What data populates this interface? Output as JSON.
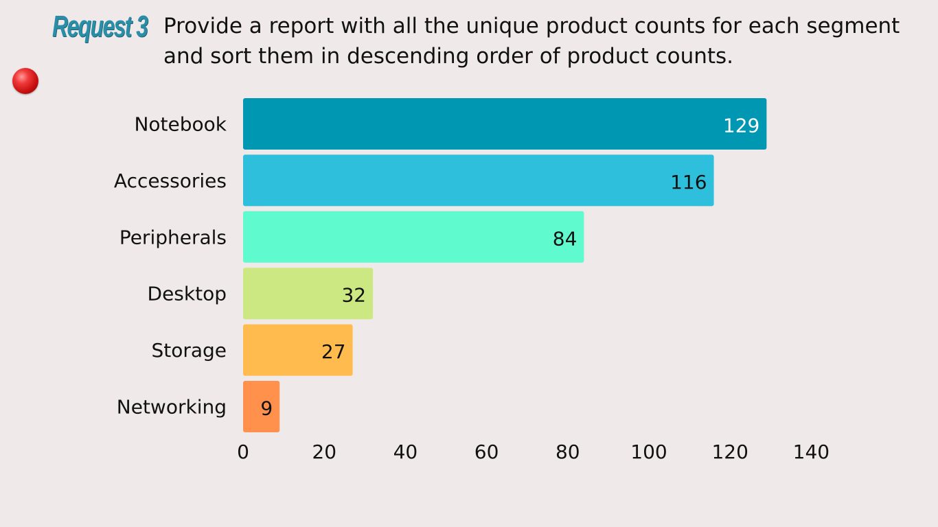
{
  "header": {
    "request_label": "Request 3",
    "description": "Provide a report with all the unique product counts for each segment and sort them in descending order of product counts."
  },
  "bullet_icon": "red-dot-icon",
  "chart_data": {
    "type": "bar",
    "orientation": "horizontal",
    "categories": [
      "Notebook",
      "Accessories",
      "Peripherals",
      "Desktop",
      "Storage",
      "Networking"
    ],
    "values": [
      129,
      116,
      84,
      32,
      27,
      9
    ],
    "colors": [
      "#0097b2",
      "#2ebfdc",
      "#5ffacd",
      "#cbe882",
      "#ffbb4e",
      "#ff914d"
    ],
    "value_label_colors": [
      "#ffffff",
      "#111111",
      "#111111",
      "#111111",
      "#111111",
      "#111111"
    ],
    "xlim": [
      0,
      140
    ],
    "x_ticks": [
      0,
      20,
      40,
      60,
      80,
      100,
      120,
      140
    ],
    "grid": false,
    "legend": "none"
  }
}
